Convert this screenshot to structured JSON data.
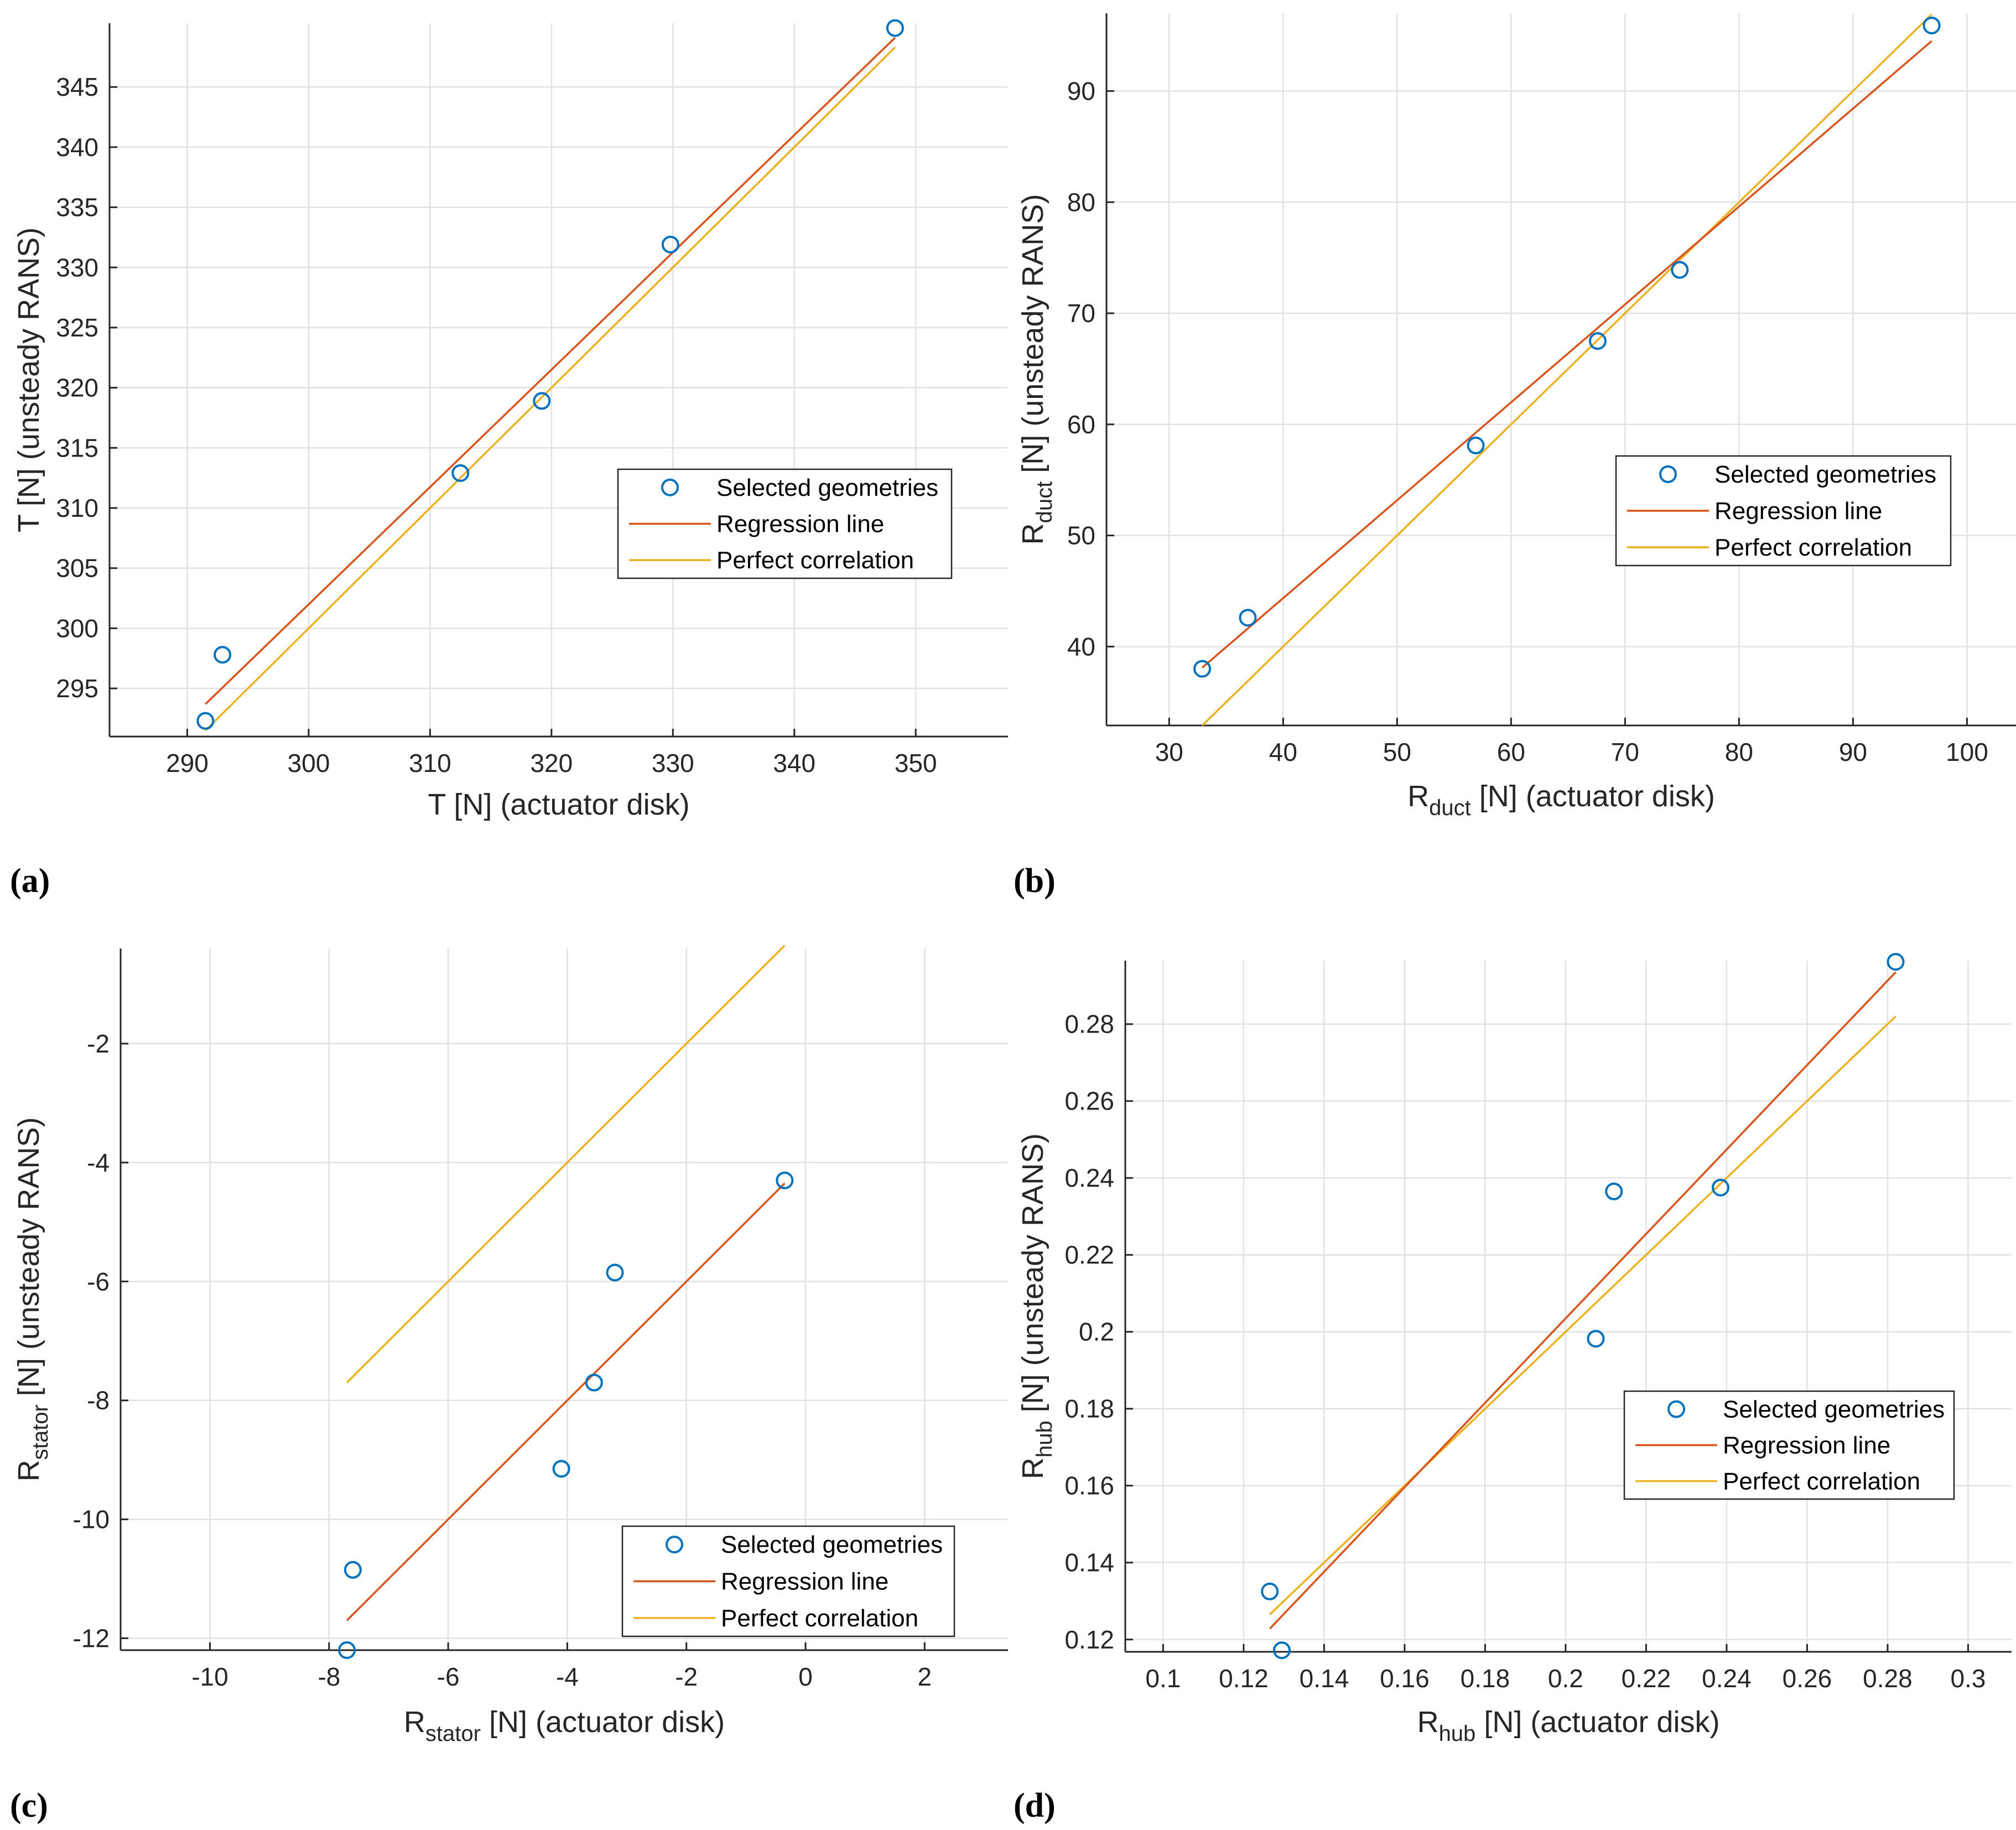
{
  "colors": {
    "markers": "#0072BD",
    "regression": "#D95319",
    "perfect": "#EDB120"
  },
  "chart_data": [
    {
      "type": "scatter",
      "panel": "(a)",
      "xlabel": {
        "main": "T [N] (actuator disk)",
        "sub": ""
      },
      "ylabel": {
        "main": "T [N] (unsteady RANS)",
        "sub": ""
      },
      "xlim": [
        283.6,
        357.6
      ],
      "ylim": [
        291,
        350.3
      ],
      "xticks": [
        290,
        300,
        310,
        320,
        330,
        340,
        350
      ],
      "yticks": [
        295,
        300,
        305,
        310,
        315,
        320,
        325,
        330,
        335,
        340,
        345
      ],
      "xtick_labels": [
        "290",
        "300",
        "310",
        "320",
        "330",
        "340",
        "350"
      ],
      "ytick_labels": [
        "295",
        "300",
        "305",
        "310",
        "315",
        "320",
        "325",
        "330",
        "335",
        "340",
        "345"
      ],
      "legend": [
        "Selected geometries",
        "Regression line",
        "Perfect correlation"
      ],
      "legend_position": "middle-right",
      "series": [
        {
          "name": "Selected geometries",
          "x": [
            291.5,
            292.9,
            312.5,
            319.2,
            329.8,
            348.3
          ],
          "y": [
            292.3,
            297.8,
            312.9,
            318.9,
            331.9,
            349.9
          ]
        },
        {
          "name": "Regression line",
          "x": [
            291.5,
            348.3
          ],
          "y": [
            293.7,
            349.1
          ]
        },
        {
          "name": "Perfect correlation",
          "x": [
            291.5,
            348.3
          ],
          "y": [
            291.5,
            348.3
          ]
        }
      ]
    },
    {
      "type": "scatter",
      "panel": "(b)",
      "xlabel": {
        "main": "R",
        "sub": "duct",
        "rest": " [N] (actuator disk)"
      },
      "ylabel": {
        "main": "R",
        "sub": "duct",
        "rest": " [N] (unsteady RANS)"
      },
      "xlim": [
        24.5,
        104.3
      ],
      "ylim": [
        32.9,
        97
      ],
      "xticks": [
        30,
        40,
        50,
        60,
        70,
        80,
        90,
        100
      ],
      "yticks": [
        40,
        50,
        60,
        70,
        80,
        90
      ],
      "xtick_labels": [
        "30",
        "40",
        "50",
        "60",
        "70",
        "80",
        "90",
        "100"
      ],
      "ytick_labels": [
        "40",
        "50",
        "60",
        "70",
        "80",
        "90"
      ],
      "legend": [
        "Selected geometries",
        "Regression line",
        "Perfect correlation"
      ],
      "legend_position": "middle-right",
      "series": [
        {
          "name": "Selected geometries",
          "x": [
            32.9,
            36.9,
            56.9,
            67.6,
            74.8,
            96.9
          ],
          "y": [
            38.0,
            42.6,
            58.1,
            67.5,
            73.9,
            95.9
          ]
        },
        {
          "name": "Regression line",
          "x": [
            32.9,
            96.9
          ],
          "y": [
            38.1,
            94.5
          ]
        },
        {
          "name": "Perfect correlation",
          "x": [
            32.9,
            96.9
          ],
          "y": [
            32.9,
            96.9
          ]
        }
      ]
    },
    {
      "type": "scatter",
      "panel": "(c)",
      "xlabel": {
        "main": "R",
        "sub": "stator",
        "rest": " [N] (actuator disk)"
      },
      "ylabel": {
        "main": "R",
        "sub": "stator",
        "rest": " [N] (unsteady RANS)"
      },
      "xlim": [
        -11.5,
        3.4
      ],
      "ylim": [
        -12.2,
        -0.4
      ],
      "xticks": [
        -10,
        -8,
        -6,
        -4,
        -2,
        0,
        2
      ],
      "yticks": [
        -12,
        -10,
        -8,
        -6,
        -4,
        -2
      ],
      "xtick_labels": [
        "-10",
        "-8",
        "-6",
        "-4",
        "-2",
        "0",
        "2"
      ],
      "ytick_labels": [
        "-12",
        "-10",
        "-8",
        "-6",
        "-4",
        "-2"
      ],
      "legend": [
        "Selected geometries",
        "Regression line",
        "Perfect correlation"
      ],
      "legend_position": "bottom-right",
      "series": [
        {
          "name": "Selected geometries",
          "x": [
            -7.7,
            -7.6,
            -4.1,
            -3.55,
            -3.2,
            -0.35
          ],
          "y": [
            -12.2,
            -10.85,
            -9.15,
            -7.7,
            -5.85,
            -4.3
          ]
        },
        {
          "name": "Regression line",
          "x": [
            -7.7,
            -0.35
          ],
          "y": [
            -11.7,
            -4.35
          ]
        },
        {
          "name": "Perfect correlation",
          "x": [
            -7.7,
            -0.35
          ],
          "y": [
            -7.7,
            -0.35
          ]
        }
      ]
    },
    {
      "type": "scatter",
      "panel": "(d)",
      "xlabel": {
        "main": "R",
        "sub": "hub",
        "rest": " [N] (actuator disk)"
      },
      "ylabel": {
        "main": "R",
        "sub": "hub",
        "rest": " [N] (unsteady RANS)"
      },
      "xlim": [
        0.0906,
        0.3108
      ],
      "ylim": [
        0.1168,
        0.2965
      ],
      "xticks": [
        0.1,
        0.12,
        0.14,
        0.16,
        0.18,
        0.2,
        0.22,
        0.24,
        0.26,
        0.28,
        0.3
      ],
      "yticks": [
        0.12,
        0.14,
        0.16,
        0.18,
        0.2,
        0.22,
        0.24,
        0.26,
        0.28
      ],
      "xtick_labels": [
        "0.1",
        "0.12",
        "0.14",
        "0.16",
        "0.18",
        "0.2",
        "0.22",
        "0.24",
        "0.26",
        "0.28",
        "0.3"
      ],
      "ytick_labels": [
        "0.12",
        "0.14",
        "0.16",
        "0.18",
        "0.2",
        "0.22",
        "0.24",
        "0.26",
        "0.28"
      ],
      "legend": [
        "Selected geometries",
        "Regression line",
        "Perfect correlation"
      ],
      "legend_position": "bottom-right",
      "series": [
        {
          "name": "Selected geometries",
          "x": [
            0.1265,
            0.1295,
            0.2075,
            0.212,
            0.2385,
            0.282
          ],
          "y": [
            0.1325,
            0.1172,
            0.1982,
            0.2365,
            0.2375,
            0.2962
          ]
        },
        {
          "name": "Regression line",
          "x": [
            0.1265,
            0.282
          ],
          "y": [
            0.1228,
            0.2935
          ]
        },
        {
          "name": "Perfect correlation",
          "x": [
            0.1265,
            0.282
          ],
          "y": [
            0.1265,
            0.282
          ]
        }
      ]
    }
  ]
}
